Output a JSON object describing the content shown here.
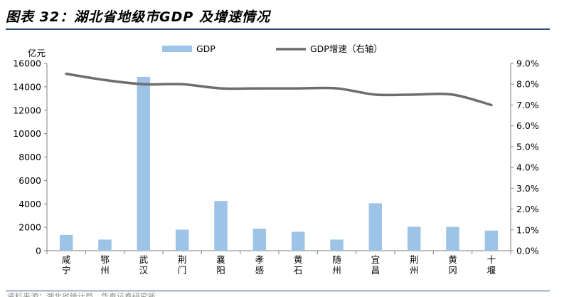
{
  "header": {
    "title": "图表 32：湖北省地级市GDP 及增速情况"
  },
  "footer": {
    "source": "资料来源：湖北省统计局、华泰证券研究所"
  },
  "chart_data": {
    "type": "bar",
    "categories": [
      "咸宁",
      "鄂州",
      "武汉",
      "荆门",
      "襄阳",
      "孝感",
      "黄石",
      "随州",
      "宜昌",
      "荆州",
      "黄冈",
      "十堰"
    ],
    "series": [
      {
        "name": "GDP",
        "type": "bar",
        "axis": "left",
        "color": "#9dc3e6",
        "values": [
          1350,
          950,
          14850,
          1800,
          4250,
          1880,
          1620,
          950,
          4050,
          2050,
          2030,
          1720
        ]
      },
      {
        "name": "GDP增速（右轴）",
        "type": "line",
        "axis": "right",
        "color": "#6d6d6d",
        "values": [
          8.5,
          8.2,
          8.0,
          8.0,
          7.8,
          7.8,
          7.8,
          7.8,
          7.5,
          7.5,
          7.5,
          7.0
        ]
      }
    ],
    "y_left": {
      "label": "亿元",
      "ylim": [
        0,
        16000
      ],
      "ticks": [
        "0",
        "2000",
        "4000",
        "6000",
        "8000",
        "10000",
        "12000",
        "14000",
        "16000"
      ]
    },
    "y_right": {
      "label": "",
      "ylim": [
        0,
        9
      ],
      "ticks": [
        "0.0%",
        "1.0%",
        "2.0%",
        "3.0%",
        "4.0%",
        "5.0%",
        "6.0%",
        "7.0%",
        "8.0%",
        "9.0%"
      ]
    },
    "legend": {
      "placement": "top-center",
      "items": [
        "GDP",
        "GDP增速（右轴）"
      ]
    },
    "grid": false
  }
}
